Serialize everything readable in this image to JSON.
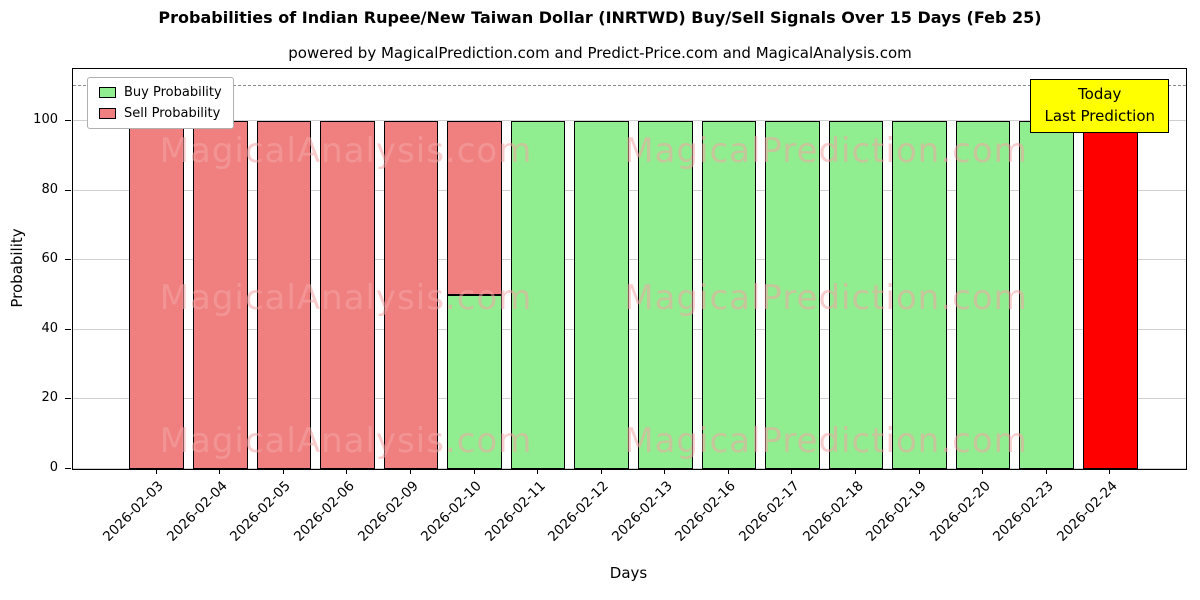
{
  "title": "Probabilities of Indian Rupee/New Taiwan Dollar (INRTWD) Buy/Sell Signals Over 15 Days (Feb 25)",
  "subtitle": "powered by MagicalPrediction.com and Predict-Price.com and MagicalAnalysis.com",
  "axes": {
    "xlabel": "Days",
    "ylabel": "Probability"
  },
  "legend": {
    "items": [
      {
        "label": "Buy Probability",
        "color": "#90ee90"
      },
      {
        "label": "Sell Probability",
        "color": "#f08080"
      }
    ]
  },
  "annotation": {
    "line1": "Today",
    "line2": "Last Prediction",
    "bg_color": "#ffff00"
  },
  "watermarks": {
    "left": "MagicalAnalysis.com",
    "right": "MagicalPrediction.com"
  },
  "chart_data": {
    "type": "bar",
    "title": "Probabilities of Indian Rupee/New Taiwan Dollar (INRTWD) Buy/Sell Signals Over 15 Days (Feb 25)",
    "xlabel": "Days",
    "ylabel": "Probability",
    "categories": [
      "2026-02-03",
      "2026-02-04",
      "2026-02-05",
      "2026-02-06",
      "2026-02-09",
      "2026-02-10",
      "2026-02-11",
      "2026-02-12",
      "2026-02-13",
      "2026-02-16",
      "2026-02-17",
      "2026-02-18",
      "2026-02-19",
      "2026-02-20",
      "2026-02-23",
      "2026-02-24"
    ],
    "series": [
      {
        "name": "Buy Probability",
        "color": "#90ee90",
        "values": [
          0,
          0,
          0,
          0,
          0,
          50,
          100,
          100,
          100,
          100,
          100,
          100,
          100,
          100,
          100,
          0
        ]
      },
      {
        "name": "Sell Probability",
        "color": "#f08080",
        "values": [
          100,
          100,
          100,
          100,
          100,
          50,
          0,
          0,
          0,
          0,
          0,
          0,
          0,
          0,
          0,
          100
        ]
      }
    ],
    "today_index": 15,
    "today_color": "#ff0000",
    "ylim": [
      0,
      115
    ],
    "yticks": [
      0,
      20,
      40,
      60,
      80,
      100
    ],
    "dashed_line_y": 110,
    "grid": true,
    "legend_position": "upper left"
  }
}
